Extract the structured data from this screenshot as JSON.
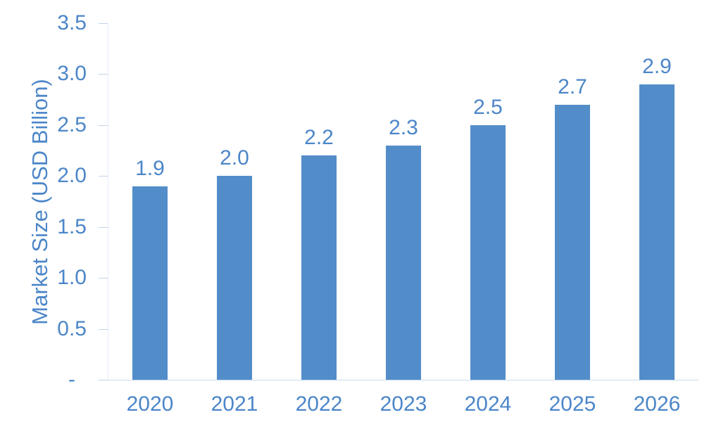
{
  "chart_data": {
    "type": "bar",
    "title": "",
    "ylabel": "Market Size (USD Billion)",
    "xlabel": "",
    "categories": [
      "2020",
      "2021",
      "2022",
      "2023",
      "2024",
      "2025",
      "2026"
    ],
    "series": [
      {
        "name": "Market Size (USD Billion)",
        "values": [
          1.9,
          2.0,
          2.2,
          2.3,
          2.5,
          2.7,
          2.9
        ]
      }
    ],
    "data_labels": [
      "1.9",
      "2.0",
      "2.2",
      "2.3",
      "2.5",
      "2.7",
      "2.9"
    ],
    "ylim": [
      0,
      3.5
    ],
    "ytick_interval": 0.5,
    "ytick_labels": [
      "3.5",
      "3.0",
      "2.5",
      "2.0",
      "1.5",
      "1.0",
      "0.5",
      "-"
    ],
    "grid": false,
    "legend_position": "none",
    "colors": {
      "bar": "#538DC9",
      "text": "#4C86C8",
      "axis_line": "#C9DBEE",
      "tick": "#BFD3E9",
      "background": "#FFFFFF"
    }
  }
}
